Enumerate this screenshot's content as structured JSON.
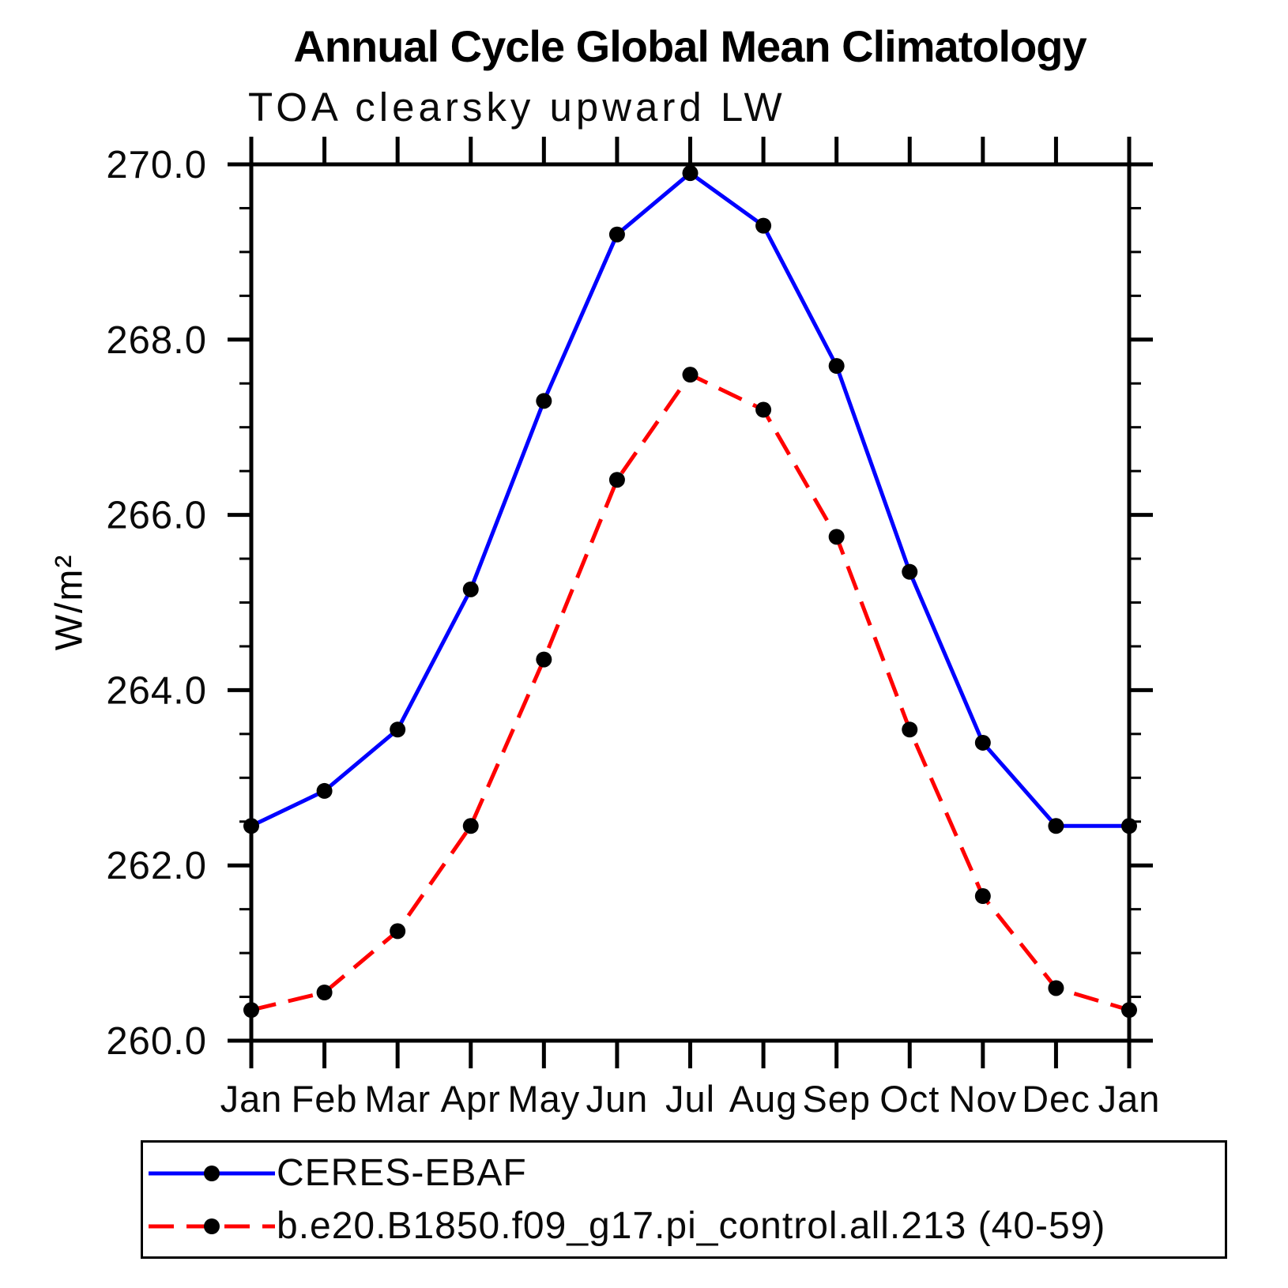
{
  "chart": {
    "title": "Annual Cycle Global Mean Climatology",
    "subtitle": "TOA clearsky upward LW",
    "ylabel": "W/m²"
  },
  "chart_data": {
    "type": "line",
    "title": "Annual Cycle Global Mean Climatology",
    "subtitle": "TOA clearsky upward LW",
    "xlabel": "",
    "ylabel": "W/m²",
    "categories": [
      "Jan",
      "Feb",
      "Mar",
      "Apr",
      "May",
      "Jun",
      "Jul",
      "Aug",
      "Sep",
      "Oct",
      "Nov",
      "Dec",
      "Jan"
    ],
    "ylim": [
      260.0,
      270.0
    ],
    "ytick_interval_major": 2.0,
    "ytick_interval_minor": 0.5,
    "ytick_labels": [
      "260.0",
      "262.0",
      "264.0",
      "266.0",
      "268.0",
      "270.0"
    ],
    "grid": false,
    "legend_position": "bottom",
    "axis_ticks": "outward-all-sides",
    "marker": {
      "shape": "circle",
      "color": "#000000"
    },
    "series": [
      {
        "name": "CERES-EBAF",
        "color": "#0000ff",
        "line_style": "solid",
        "values": [
          262.45,
          262.85,
          263.55,
          265.15,
          267.3,
          269.2,
          269.9,
          269.3,
          267.7,
          265.35,
          263.4,
          262.45,
          262.45
        ]
      },
      {
        "name": "b.e20.B1850.f09_g17.pi_control.all.213 (40-59)",
        "color": "#ff0000",
        "line_style": "dashed",
        "values": [
          260.35,
          260.55,
          261.25,
          262.45,
          264.35,
          266.4,
          267.6,
          267.2,
          265.75,
          263.55,
          261.65,
          260.6,
          260.35
        ]
      }
    ]
  },
  "legend": {
    "entries": [
      {
        "label": "CERES-EBAF",
        "color": "#0000ff",
        "line_style": "solid",
        "marker_color": "#000000"
      },
      {
        "label": "b.e20.B1850.f09_g17.pi_control.all.213 (40-59)",
        "color": "#ff0000",
        "line_style": "dashed",
        "marker_color": "#000000"
      }
    ]
  }
}
